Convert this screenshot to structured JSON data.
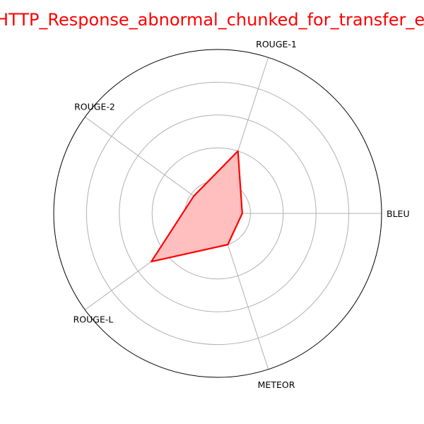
{
  "chart_data": {
    "type": "radar",
    "title": "HTTP_Response_abnormal_chunked_for_transfer_encoding",
    "categories": [
      "BLEU",
      "ROUGE-1",
      "ROUGE-2",
      "ROUGE-L",
      "METEOR"
    ],
    "series": [
      {
        "values": [
          0.15,
          0.4,
          0.18,
          0.5,
          0.2
        ]
      }
    ],
    "rlim": [
      0,
      1
    ],
    "rings": [
      0.2,
      0.4,
      0.6,
      0.8,
      1.0
    ],
    "grid": true,
    "line_color": "#ff0000",
    "fill_color": "#ffbfbf",
    "grid_color": "#b0b0b0",
    "title_color": "#ff0000"
  }
}
